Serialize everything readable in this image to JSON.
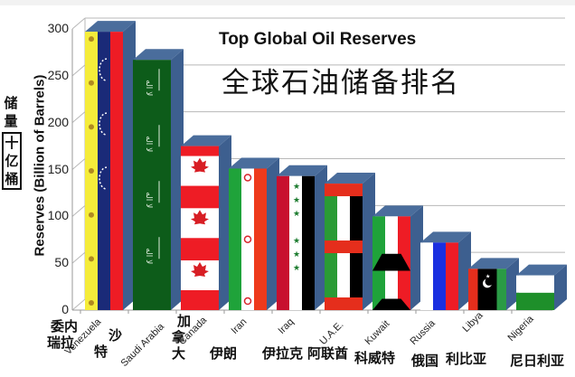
{
  "chart_data": {
    "type": "bar",
    "style": "3d",
    "title": "Top Global Oil Reserves",
    "subtitle": "全球石油储备排名",
    "xlabel": "",
    "ylabel": "Reserves (Billion of Barrels)",
    "ylabel_zh": "储量 十亿桶",
    "ylim": [
      0,
      300
    ],
    "yticks": [
      0,
      50,
      100,
      150,
      200,
      250,
      300
    ],
    "grid": true,
    "legend": null,
    "categories": [
      "Venezuela",
      "Saudi Arabia",
      "Canada",
      "Iran",
      "Iraq",
      "U.A.E.",
      "Kuwait",
      "Russia",
      "Libya",
      "Nigeria"
    ],
    "categories_zh": [
      "委内瑞拉",
      "沙特",
      "加拿大",
      "伊朗",
      "伊拉克",
      "阿联酋",
      "科威特",
      "俄国",
      "利比亚",
      "尼日利亚"
    ],
    "values": [
      297,
      267,
      175,
      151,
      143,
      135,
      100,
      72,
      44,
      37
    ],
    "bar_fill": "country flags"
  },
  "labels": {
    "title_en": "Top Global Oil Reserves",
    "title_zh": "全球石油储备排名",
    "ylabel": "Reserves (Billion of Barrels)",
    "ylabel_zh_top": [
      "储",
      "量"
    ],
    "ylabel_zh_box": [
      "十",
      "亿",
      "桶"
    ]
  },
  "colors": {
    "bar_side": "#3d5f8f",
    "bar_top": "#4a6d9c",
    "axis": "#9a9a9a",
    "grid": "#b8b8b8"
  }
}
